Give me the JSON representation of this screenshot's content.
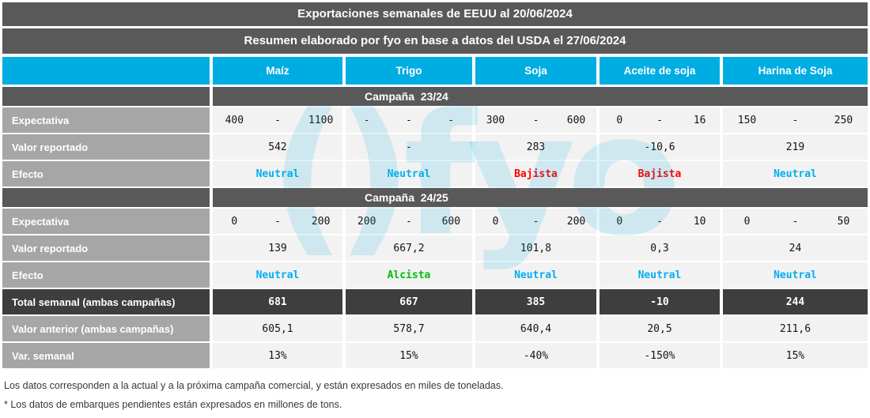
{
  "title_bar": "Exportaciones semanales de EEUU al 20/06/2024",
  "subtitle_bar": "Resumen elaborado por fyo en base a datos del USDA el 27/06/2024",
  "row_labels": {
    "expectativa": "Expectativa",
    "valor": "Valor reportado",
    "efecto": "Efecto",
    "total": "Total semanal (ambas campañas)",
    "anterior": "Valor anterior (ambas campañas)",
    "variacion": "Var. semanal"
  },
  "chart_data": {
    "type": "table",
    "title": "Exportaciones semanales de EEUU al 20/06/2024",
    "columns": [
      "Maíz",
      "Trigo",
      "Soja",
      "Aceite de soja",
      "Harina de Soja"
    ],
    "c2324": {
      "title": "Campaña  23/24",
      "expectativa": [
        [
          "400",
          "-",
          "1100"
        ],
        [
          "-",
          "-",
          "-"
        ],
        [
          "300",
          "-",
          "600"
        ],
        [
          "0",
          "-",
          "16"
        ],
        [
          "150",
          "-",
          "250"
        ]
      ],
      "valor": [
        "542",
        "-",
        "283",
        "-10,6",
        "219"
      ],
      "efecto": [
        "Neutral",
        "Neutral",
        "Bajista",
        "Bajista",
        "Neutral"
      ],
      "efecto_colors": [
        "#00b0f0",
        "#00b0f0",
        "#ff0000",
        "#ff0000",
        "#00b0f0"
      ]
    },
    "c2425": {
      "title": "Campaña  24/25",
      "expectativa": [
        [
          "0",
          "-",
          "200"
        ],
        [
          "200",
          "-",
          "600"
        ],
        [
          "0",
          "-",
          "200"
        ],
        [
          "0",
          "-",
          "10"
        ],
        [
          "0",
          "-",
          "50"
        ]
      ],
      "valor": [
        "139",
        "667,2",
        "101,8",
        "0,3",
        "24"
      ],
      "efecto": [
        "Neutral",
        "Alcista",
        "Neutral",
        "Neutral",
        "Neutral"
      ],
      "efecto_colors": [
        "#00b0f0",
        "#00c000",
        "#00b0f0",
        "#00b0f0",
        "#00b0f0"
      ]
    },
    "summary": {
      "total": [
        "681",
        "667",
        "385",
        "-10",
        "244"
      ],
      "anterior": [
        "605,1",
        "578,7",
        "640,4",
        "20,5",
        "211,6"
      ],
      "variacion": [
        "13%",
        "15%",
        "-40%",
        "-150%",
        "15%"
      ]
    }
  },
  "footnotes": [
    "Los datos corresponden a la actual y a la próxima campaña comercial, y están expresados en miles de toneladas.",
    "* Los datos de embarques pendientes están expresados en millones de tons."
  ],
  "watermark": "()fyo",
  "colors": {
    "accent": "#00ade2",
    "header_gray": "#595959",
    "total_dark": "#3e3e3e",
    "label_gray": "#a6a6a6",
    "cell_bg": "#f2f2f2",
    "neutral": "#00b0f0",
    "bajista": "#ff0000",
    "alcista": "#00c000"
  }
}
